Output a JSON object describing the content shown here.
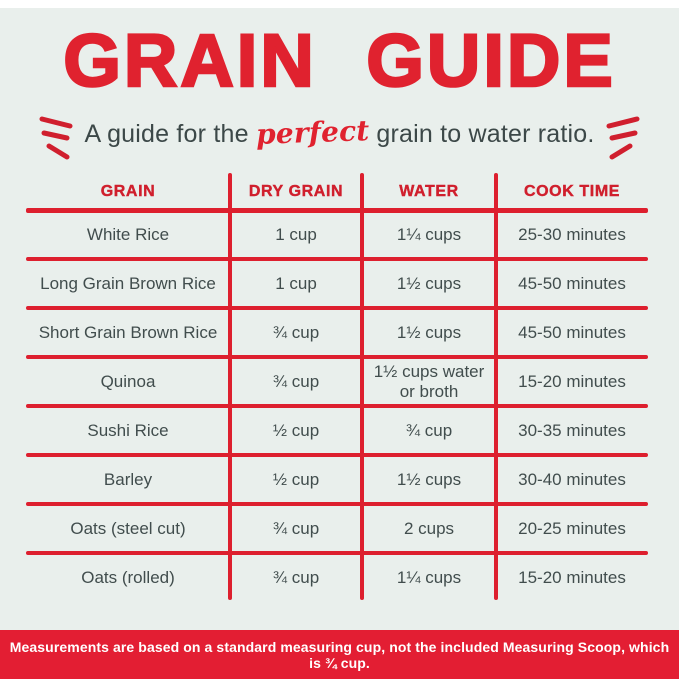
{
  "page": {
    "title": "GRAIN GUIDE",
    "subtitle": {
      "prefix": "A guide for the ",
      "highlight": "perfect",
      "suffix": " grain to water ratio."
    },
    "footer": "Measurements are based on a standard measuring cup, not the included Measuring Scoop, which is ¾ cup."
  },
  "colors": {
    "accent_red": "#e0222f",
    "background": "#e9efec",
    "body_text": "#414d4d",
    "footer_text": "#ffffff"
  },
  "icons": {
    "left_emphasis": "emphasis-lines-left-icon",
    "right_emphasis": "emphasis-lines-right-icon"
  },
  "table": {
    "headers": [
      "GRAIN",
      "DRY GRAIN",
      "WATER",
      "COOK TIME"
    ],
    "rows": [
      [
        "White Rice",
        "1 cup",
        "1¼ cups",
        "25-30 minutes"
      ],
      [
        "Long Grain Brown Rice",
        "1 cup",
        "1½ cups",
        "45-50 minutes"
      ],
      [
        "Short Grain Brown Rice",
        "¾ cup",
        "1½ cups",
        "45-50 minutes"
      ],
      [
        "Quinoa",
        "¾ cup",
        "1½ cups water or broth",
        "15-20 minutes"
      ],
      [
        "Sushi Rice",
        "½ cup",
        "¾ cup",
        "30-35 minutes"
      ],
      [
        "Barley",
        "½ cup",
        "1½ cups",
        "30-40 minutes"
      ],
      [
        "Oats (steel cut)",
        "¾ cup",
        "2 cups",
        "20-25 minutes"
      ],
      [
        "Oats (rolled)",
        "¾ cup",
        "1¼ cups",
        "15-20 minutes"
      ]
    ]
  }
}
